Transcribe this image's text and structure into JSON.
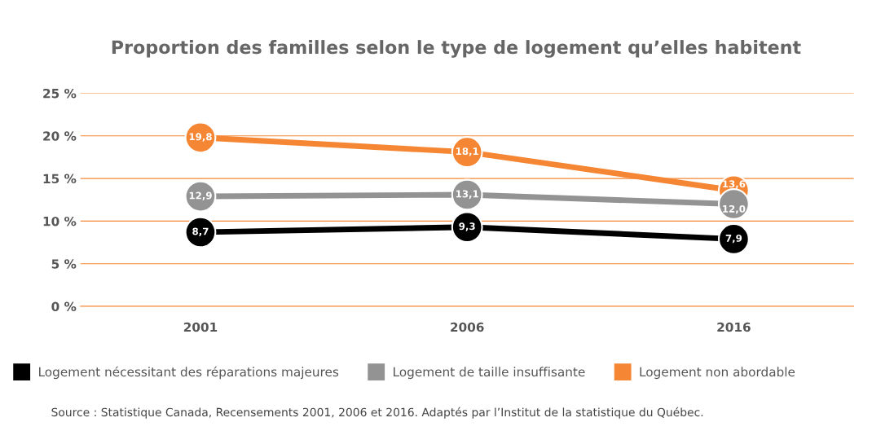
{
  "chart_data": {
    "type": "line",
    "title": "Proportion des familles selon le type de logement qu’elles habitent",
    "categories": [
      "2001",
      "2006",
      "2016"
    ],
    "series": [
      {
        "name": "Logement nécessitant des réparations majeures",
        "color": "#000000",
        "values": [
          8.7,
          9.3,
          7.9
        ],
        "value_labels": [
          "8,7",
          "9,3",
          "7,9"
        ]
      },
      {
        "name": "Logement de taille insuffisante",
        "color": "#939393",
        "values": [
          12.9,
          13.1,
          12.0
        ],
        "value_labels": [
          "12,9",
          "13,1",
          "12,0"
        ]
      },
      {
        "name": "Logement non abordable",
        "color": "#f58634",
        "values": [
          19.8,
          18.1,
          13.6
        ],
        "value_labels": [
          "19,8",
          "18,1",
          "13,6"
        ]
      }
    ],
    "ylim": [
      0,
      25
    ],
    "yticks": [
      {
        "value": 0,
        "label": "0 %"
      },
      {
        "value": 5,
        "label": "5 %"
      },
      {
        "value": 10,
        "label": "10 %"
      },
      {
        "value": 15,
        "label": "15 %"
      },
      {
        "value": 20,
        "label": "20 %"
      },
      {
        "value": 25,
        "label": "25 %"
      }
    ],
    "grid": "y",
    "legend": "bottom",
    "marker": "circle",
    "line_style": "solid",
    "annotations": [
      "Source : Statistique Canada, Recensements 2001, 2006 et 2016. Adaptés par l’Institut de la statistique du Québec."
    ]
  }
}
